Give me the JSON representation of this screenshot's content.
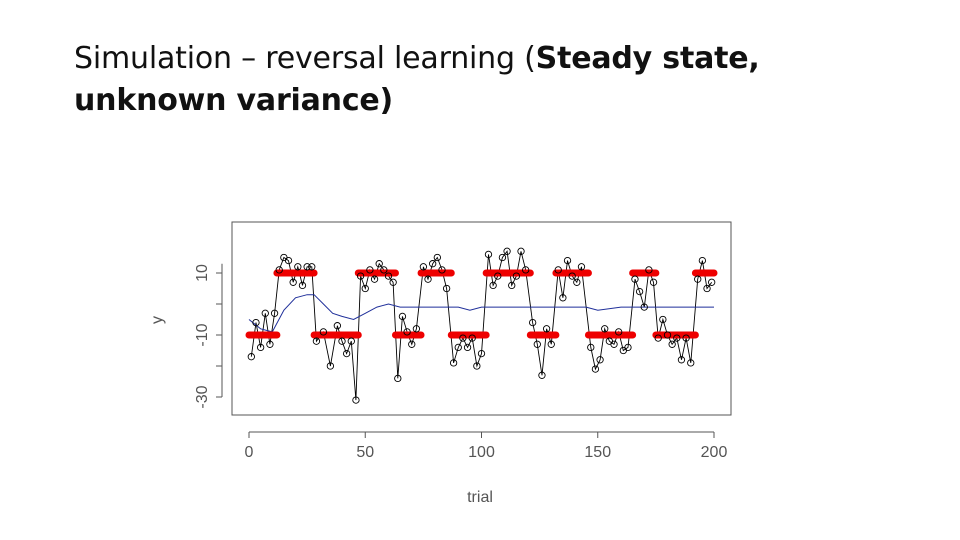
{
  "slide": {
    "title_light": "Simulation – reversal learning (",
    "title_bold_line1": "Steady state,",
    "title_bold_line2": "unknown variance)"
  },
  "chart_data": {
    "type": "scatter",
    "xlabel": "trial",
    "ylabel": "y",
    "xlim": [
      0,
      200
    ],
    "ylim": [
      -33,
      15
    ],
    "x_ticks": [
      0,
      50,
      100,
      150,
      200
    ],
    "y_ticks": [
      -30,
      -10,
      10
    ],
    "grid": false,
    "true_state_segments": [
      {
        "x0": 0,
        "x1": 12,
        "y": -10
      },
      {
        "x0": 12,
        "x1": 28,
        "y": 10
      },
      {
        "x0": 28,
        "x1": 47,
        "y": -10
      },
      {
        "x0": 47,
        "x1": 63,
        "y": 10
      },
      {
        "x0": 63,
        "x1": 74,
        "y": -10
      },
      {
        "x0": 74,
        "x1": 87,
        "y": 10
      },
      {
        "x0": 87,
        "x1": 102,
        "y": -10
      },
      {
        "x0": 102,
        "x1": 121,
        "y": 10
      },
      {
        "x0": 121,
        "x1": 132,
        "y": -10
      },
      {
        "x0": 132,
        "x1": 146,
        "y": 10
      },
      {
        "x0": 146,
        "x1": 165,
        "y": -10
      },
      {
        "x0": 165,
        "x1": 175,
        "y": 10
      },
      {
        "x0": 175,
        "x1": 192,
        "y": -10
      },
      {
        "x0": 192,
        "x1": 200,
        "y": 10
      }
    ],
    "estimate_curve": [
      [
        0,
        -5
      ],
      [
        5,
        -8
      ],
      [
        10,
        -9
      ],
      [
        15,
        -2
      ],
      [
        20,
        2
      ],
      [
        25,
        3
      ],
      [
        28,
        3
      ],
      [
        32,
        0
      ],
      [
        36,
        -3
      ],
      [
        40,
        -4
      ],
      [
        45,
        -5
      ],
      [
        50,
        -3
      ],
      [
        55,
        -1
      ],
      [
        60,
        0
      ],
      [
        65,
        -1
      ],
      [
        70,
        -1
      ],
      [
        75,
        -1
      ],
      [
        80,
        -1
      ],
      [
        85,
        -1
      ],
      [
        90,
        -1
      ],
      [
        95,
        -2
      ],
      [
        100,
        -1
      ],
      [
        105,
        -1
      ],
      [
        110,
        -1
      ],
      [
        115,
        -1
      ],
      [
        120,
        -1
      ],
      [
        125,
        -1
      ],
      [
        130,
        -1
      ],
      [
        135,
        -1
      ],
      [
        140,
        -1
      ],
      [
        145,
        -1
      ],
      [
        150,
        -2
      ],
      [
        160,
        -1
      ],
      [
        170,
        -1
      ],
      [
        180,
        -1
      ],
      [
        190,
        -1
      ],
      [
        200,
        -1
      ]
    ],
    "observations_sample": [
      [
        1,
        -17
      ],
      [
        3,
        -6
      ],
      [
        5,
        -14
      ],
      [
        7,
        -3
      ],
      [
        9,
        -13
      ],
      [
        11,
        -3
      ],
      [
        13,
        11
      ],
      [
        15,
        15
      ],
      [
        17,
        14
      ],
      [
        19,
        7
      ],
      [
        21,
        12
      ],
      [
        23,
        6
      ],
      [
        25,
        12
      ],
      [
        27,
        12
      ],
      [
        29,
        -12
      ],
      [
        32,
        -9
      ],
      [
        35,
        -20
      ],
      [
        38,
        -7
      ],
      [
        40,
        -12
      ],
      [
        42,
        -16
      ],
      [
        44,
        -12
      ],
      [
        46,
        -31
      ],
      [
        48,
        9
      ],
      [
        50,
        5
      ],
      [
        52,
        11
      ],
      [
        54,
        8
      ],
      [
        56,
        13
      ],
      [
        58,
        11
      ],
      [
        60,
        9
      ],
      [
        62,
        7
      ],
      [
        64,
        -24
      ],
      [
        66,
        -4
      ],
      [
        68,
        -9
      ],
      [
        70,
        -13
      ],
      [
        72,
        -8
      ],
      [
        75,
        12
      ],
      [
        77,
        8
      ],
      [
        79,
        13
      ],
      [
        81,
        15
      ],
      [
        83,
        11
      ],
      [
        85,
        5
      ],
      [
        88,
        -19
      ],
      [
        90,
        -14
      ],
      [
        92,
        -11
      ],
      [
        94,
        -14
      ],
      [
        96,
        -11
      ],
      [
        98,
        -20
      ],
      [
        100,
        -16
      ],
      [
        103,
        16
      ],
      [
        105,
        6
      ],
      [
        107,
        9
      ],
      [
        109,
        15
      ],
      [
        111,
        17
      ],
      [
        113,
        6
      ],
      [
        115,
        9
      ],
      [
        117,
        17
      ],
      [
        119,
        11
      ],
      [
        122,
        -6
      ],
      [
        124,
        -13
      ],
      [
        126,
        -23
      ],
      [
        128,
        -8
      ],
      [
        130,
        -13
      ],
      [
        133,
        11
      ],
      [
        135,
        2
      ],
      [
        137,
        14
      ],
      [
        139,
        9
      ],
      [
        141,
        7
      ],
      [
        143,
        12
      ],
      [
        147,
        -14
      ],
      [
        149,
        -21
      ],
      [
        151,
        -18
      ],
      [
        153,
        -8
      ],
      [
        155,
        -12
      ],
      [
        157,
        -13
      ],
      [
        159,
        -9
      ],
      [
        161,
        -15
      ],
      [
        163,
        -14
      ],
      [
        166,
        8
      ],
      [
        168,
        4
      ],
      [
        170,
        -1
      ],
      [
        172,
        11
      ],
      [
        174,
        7
      ],
      [
        176,
        -11
      ],
      [
        178,
        -5
      ],
      [
        180,
        -10
      ],
      [
        182,
        -13
      ],
      [
        184,
        -11
      ],
      [
        186,
        -18
      ],
      [
        188,
        -11
      ],
      [
        190,
        -19
      ],
      [
        193,
        8
      ],
      [
        195,
        14
      ],
      [
        197,
        5
      ],
      [
        199,
        7
      ]
    ],
    "colors": {
      "observations": "#000000",
      "true_state": "#ee0000",
      "estimate": "#1f2f9a",
      "frame": "#555555"
    }
  }
}
